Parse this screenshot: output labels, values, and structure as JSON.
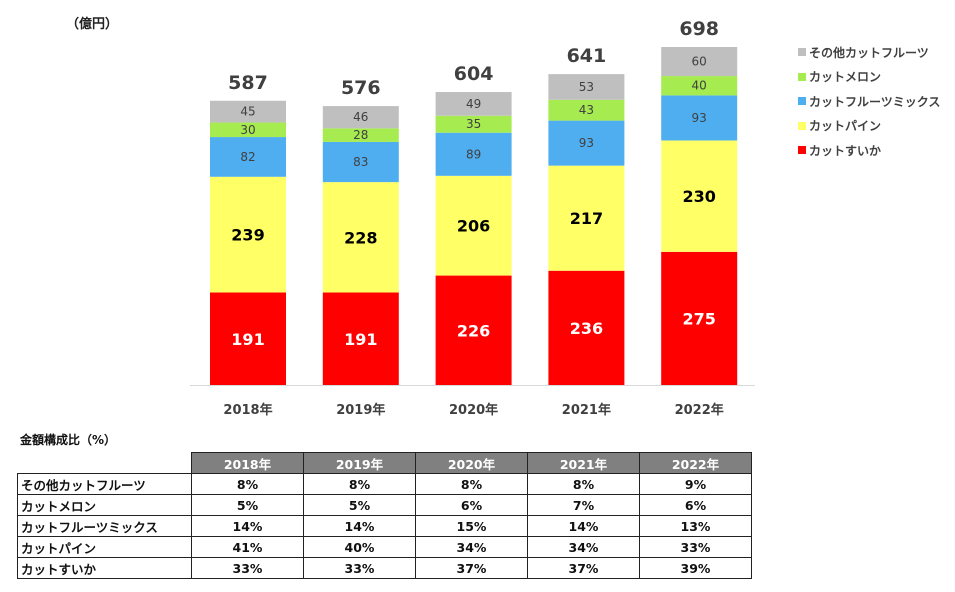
{
  "unit_label": "（億円）",
  "chart_data": {
    "type": "bar",
    "stacked": true,
    "title": "",
    "xlabel": "",
    "ylabel": "（億円）",
    "ylim": [
      0,
      700
    ],
    "grid": false,
    "legend_position": "right",
    "categories": [
      "2018年",
      "2019年",
      "2020年",
      "2021年",
      "2022年"
    ],
    "totals": [
      587,
      576,
      604,
      641,
      698
    ],
    "series": [
      {
        "name": "カットすいか",
        "color": "#ff0000",
        "label_color": "#ffffff",
        "values": [
          191,
          191,
          226,
          236,
          275
        ]
      },
      {
        "name": "カットパイン",
        "color": "#ffff66",
        "label_color": "#000000",
        "values": [
          239,
          228,
          206,
          217,
          230
        ]
      },
      {
        "name": "カットフルーツミックス",
        "color": "#4faef0",
        "label_color": "#404040",
        "values": [
          82,
          83,
          89,
          93,
          93
        ]
      },
      {
        "name": "カットメロン",
        "color": "#a6eb50",
        "label_color": "#404040",
        "values": [
          30,
          28,
          35,
          43,
          40
        ]
      },
      {
        "name": "その他カットフルーツ",
        "color": "#bfbfbf",
        "label_color": "#404040",
        "values": [
          45,
          46,
          49,
          53,
          60
        ]
      }
    ],
    "legend_order": [
      "その他カットフルーツ",
      "カットメロン",
      "カットフルーツミックス",
      "カットパイン",
      "カットすいか"
    ]
  },
  "table": {
    "title": "金額構成比（%）",
    "columns": [
      "2018年",
      "2019年",
      "2020年",
      "2021年",
      "2022年"
    ],
    "rows": [
      {
        "label": "その他カットフルーツ",
        "values": [
          "8%",
          "8%",
          "8%",
          "8%",
          "9%"
        ]
      },
      {
        "label": "カットメロン",
        "values": [
          "5%",
          "5%",
          "6%",
          "7%",
          "6%"
        ]
      },
      {
        "label": "カットフルーツミックス",
        "values": [
          "14%",
          "14%",
          "15%",
          "14%",
          "13%"
        ]
      },
      {
        "label": "カットパイン",
        "values": [
          "41%",
          "40%",
          "34%",
          "34%",
          "33%"
        ]
      },
      {
        "label": "カットすいか",
        "values": [
          "33%",
          "33%",
          "37%",
          "37%",
          "39%"
        ]
      }
    ]
  }
}
